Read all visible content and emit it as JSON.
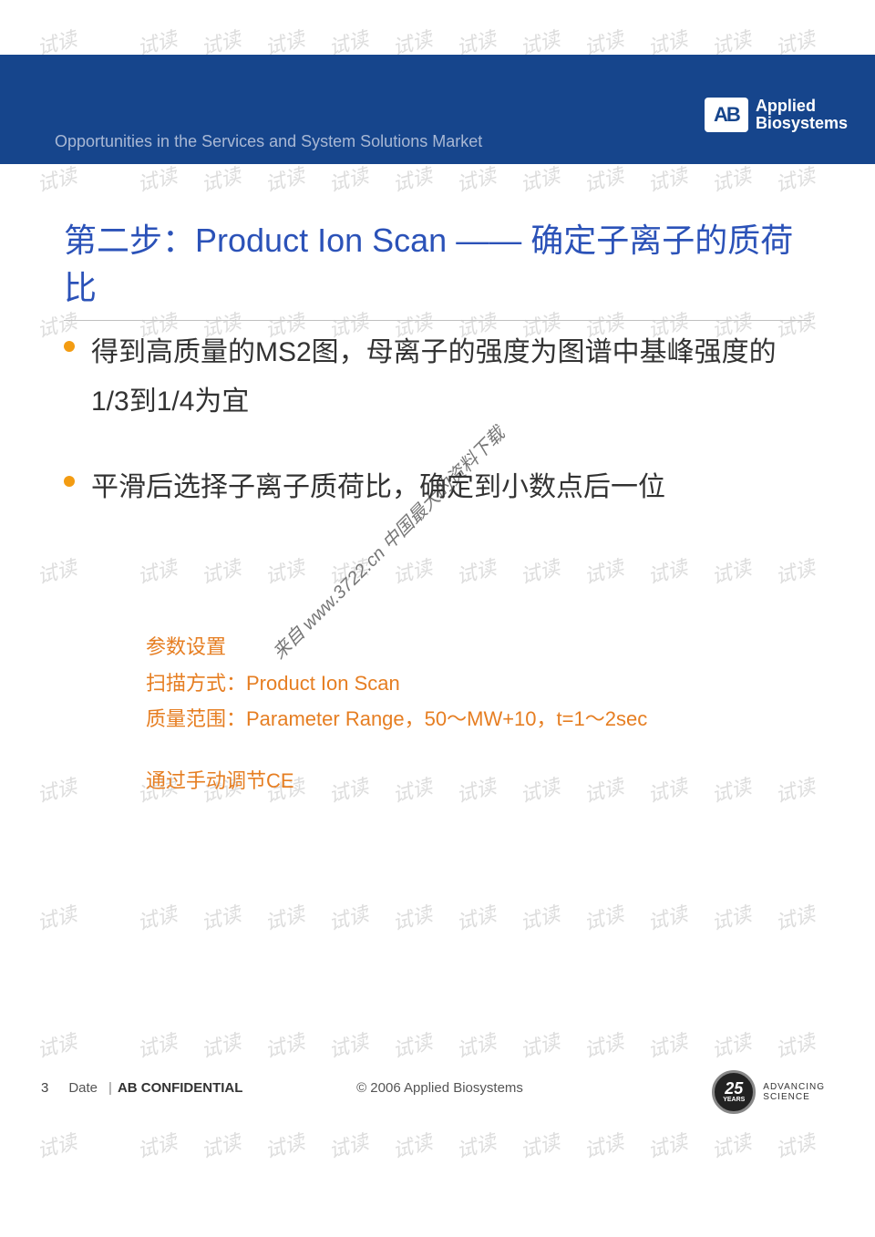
{
  "header": {
    "subtitle": "Opportunities in the Services and System Solutions Market",
    "logo_mark": "AB",
    "logo_text_line1": "Applied",
    "logo_text_line2": "Biosystems"
  },
  "title": {
    "prefix": "第二步：",
    "main": "Product Ion Scan —— 确定子离子的质荷比"
  },
  "bullets": [
    "得到高质量的MS2图，母离子的强度为图谱中基峰强度的1/3到1/4为宜",
    "平滑后选择子离子质荷比，确定到小数点后一位"
  ],
  "params": {
    "heading": "参数设置",
    "scan_mode": "扫描方式：Product Ion Scan",
    "mass_range": "质量范围：Parameter Range，50～MW+10，t=1～2sec",
    "manual": "通过手动调节CE"
  },
  "footer": {
    "page_num": "3",
    "date_label": "Date",
    "separator": "|",
    "confidential": "AB CONFIDENTIAL",
    "copyright": "© 2006 Applied Biosystems"
  },
  "badge": {
    "number": "25",
    "years": "YEARS",
    "tagline_line1": "ADVANCING",
    "tagline_line2": "SCIENCE"
  },
  "watermark": {
    "repeat_text": "试读",
    "diagonal_text": "来自 www.3722.cn 中国最大的资料下载",
    "color_light": "rgba(120,120,120,0.25)",
    "rows": [
      30,
      180,
      340,
      610,
      850,
      990,
      1130,
      1240
    ],
    "cols": [
      40,
      150,
      220,
      290,
      360,
      430,
      500,
      570,
      640,
      710,
      780,
      850
    ]
  },
  "colors": {
    "header_band": "#16458c",
    "header_subtitle": "#a9b8d4",
    "title_text": "#2b52b8",
    "title_underline": "#c0c0c0",
    "bullet_dot": "#f39c12",
    "bullet_text": "#333333",
    "param_text": "#e67e22",
    "background": "#ffffff"
  }
}
